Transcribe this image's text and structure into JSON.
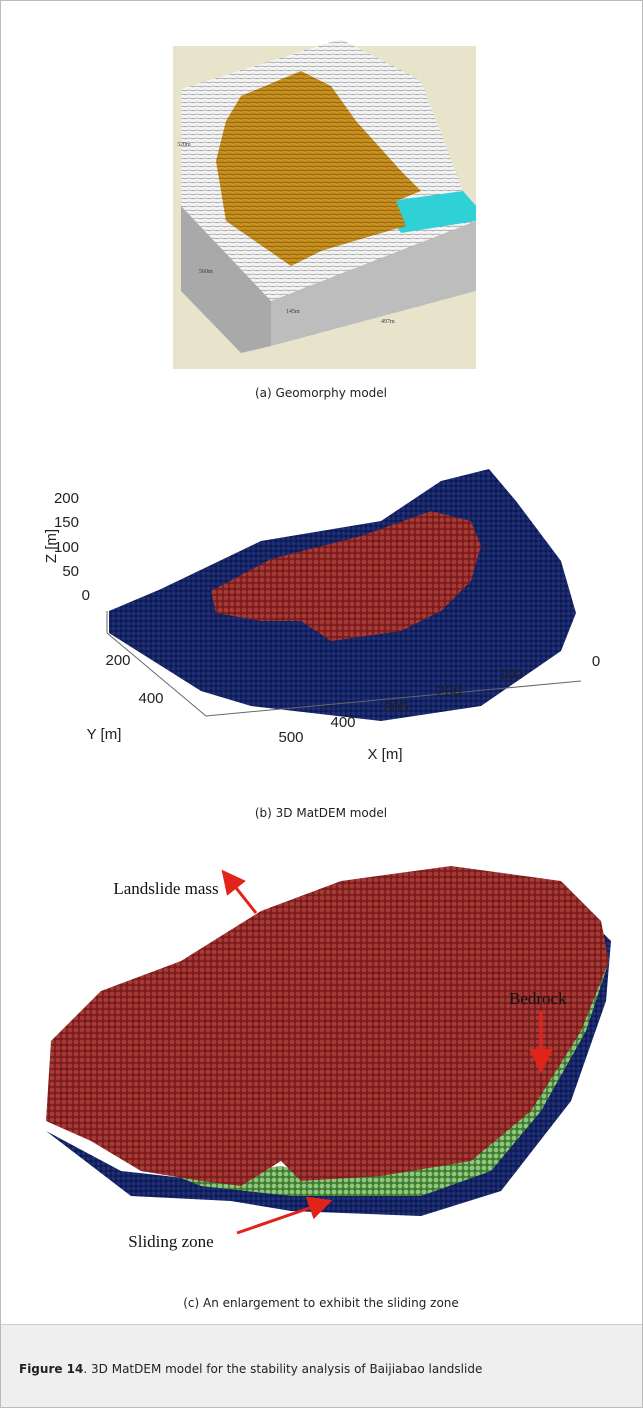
{
  "figure": {
    "panels": [
      {
        "caption": "(a) Geomorphy model",
        "labels": [
          "320m",
          "560m",
          "145m",
          "497m"
        ]
      },
      {
        "caption": "(b) 3D MatDEM model",
        "z_label": "Z [m]",
        "z_ticks": [
          "200",
          "150",
          "100",
          "50",
          "0"
        ],
        "y_label": "Y [m]",
        "y_ticks": [
          "200",
          "400"
        ],
        "x_label": "X [m]",
        "x_ticks": [
          "500",
          "400",
          "300",
          "200",
          "100",
          "0"
        ]
      },
      {
        "caption": "(c) An enlargement to exhibit the sliding zone",
        "labels": [
          "Landslide mass",
          "Bedrock",
          "Sliding zone"
        ]
      }
    ],
    "label": "Figure 14",
    "text": ". 3D MatDEM model for the stability analysis of Baijiabao landslide"
  }
}
